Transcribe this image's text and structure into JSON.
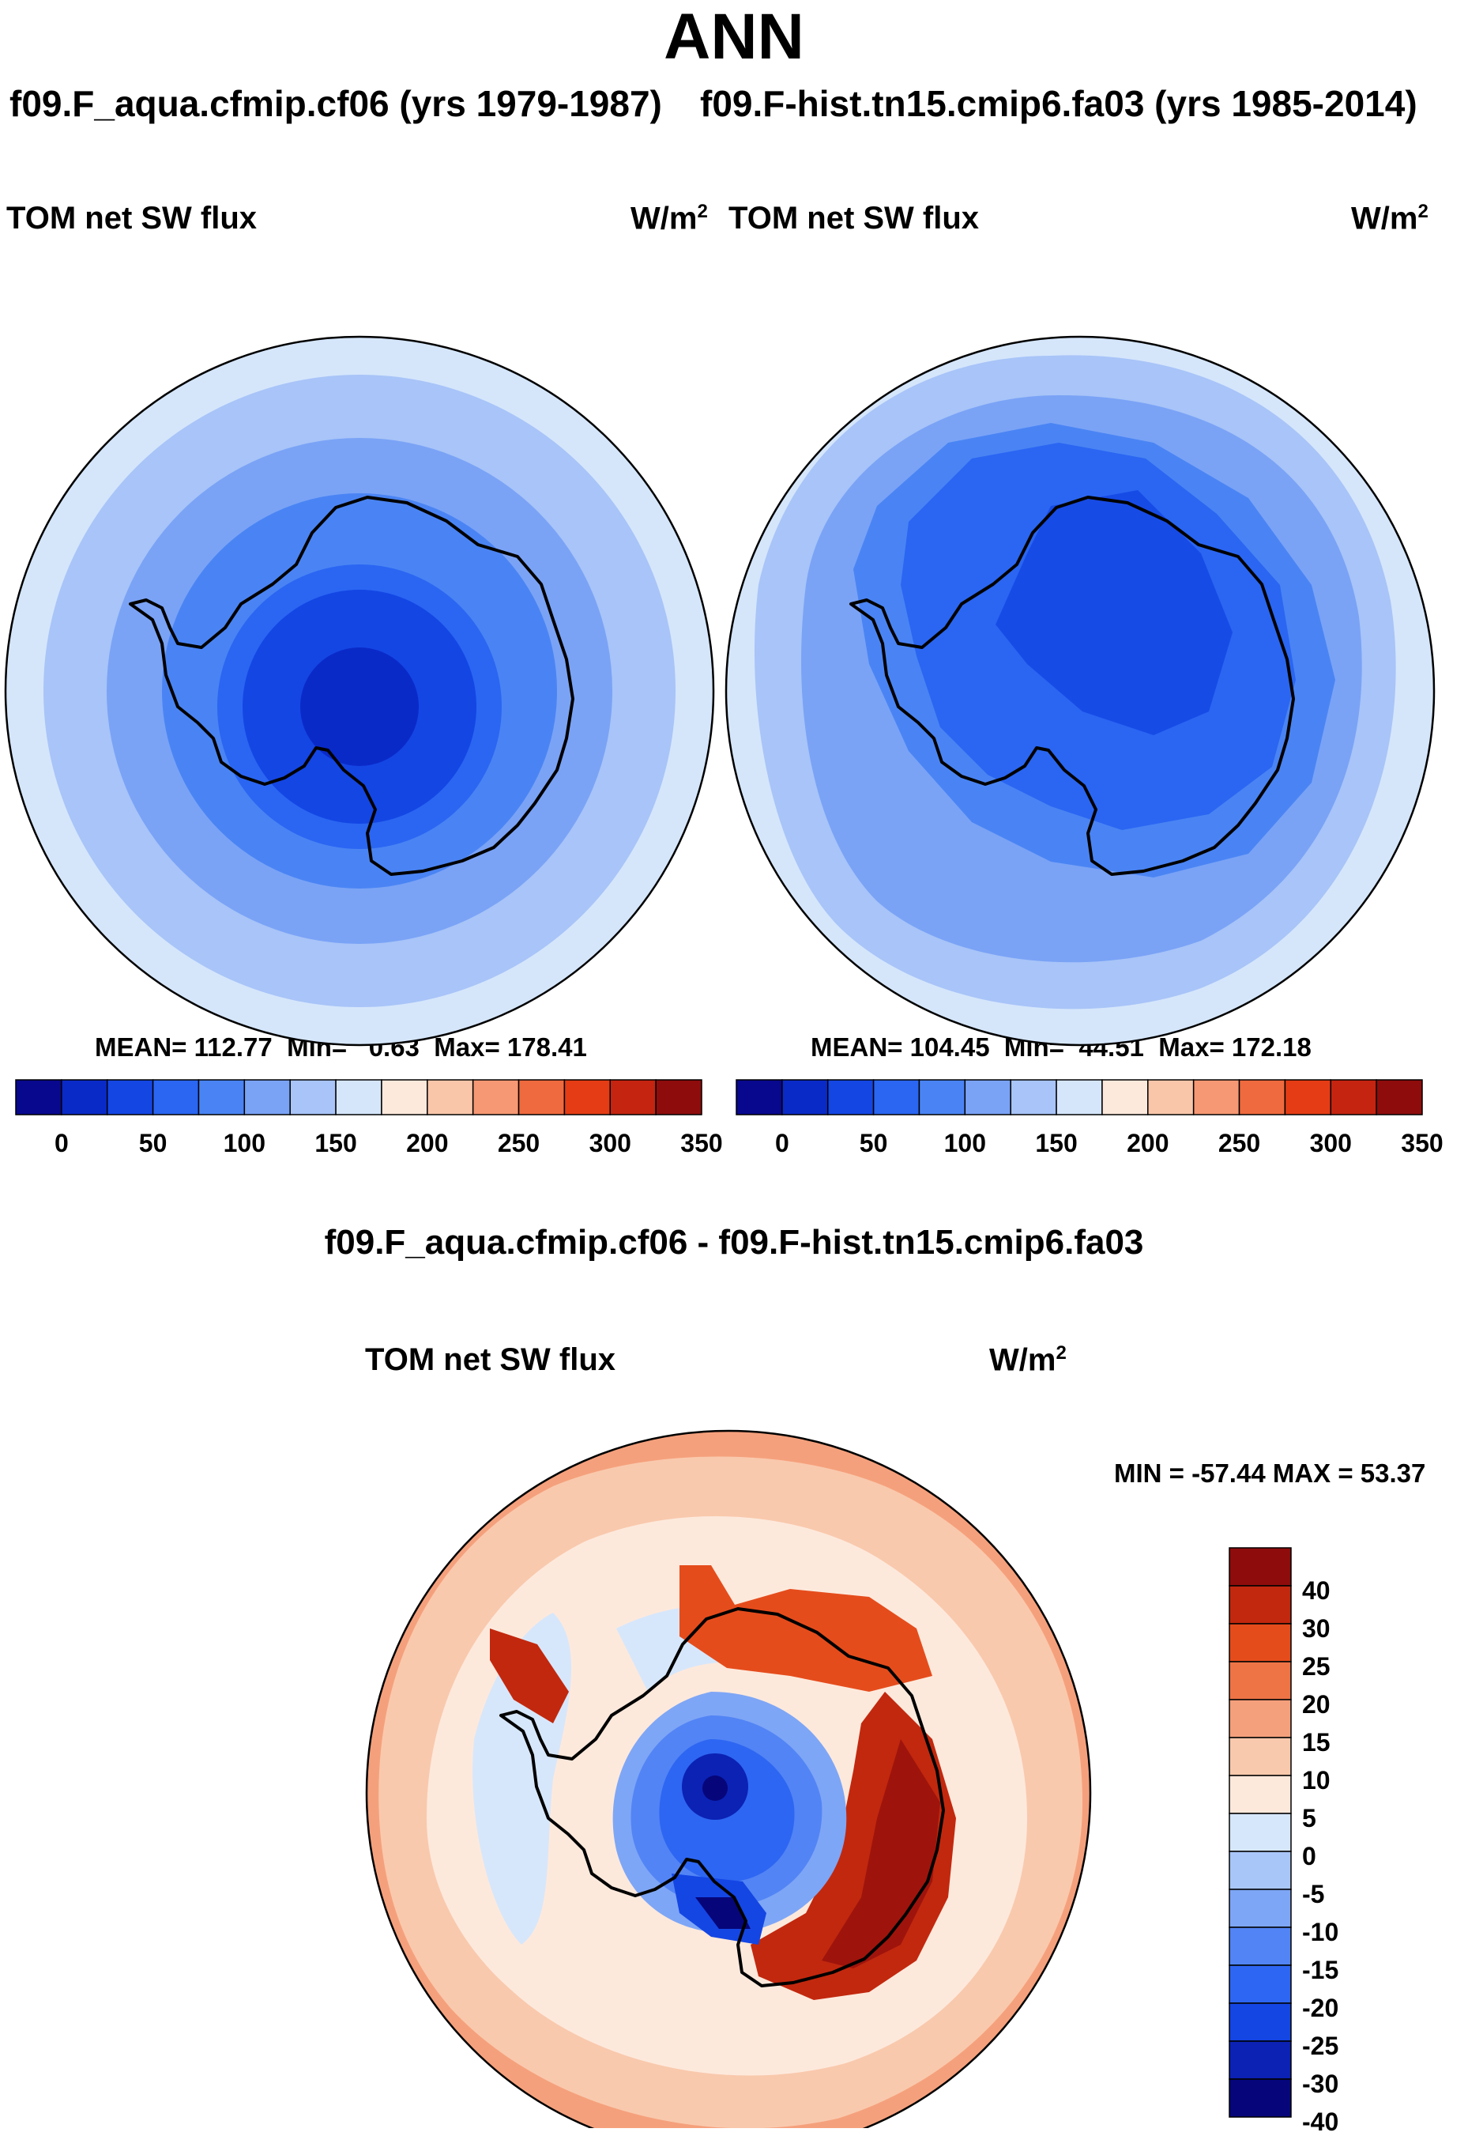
{
  "figure": {
    "title": "ANN",
    "colors": {
      "seq": [
        "#08088f",
        "#0a2ac8",
        "#1446e4",
        "#2a66f2",
        "#4a84f4",
        "#7aa3f6",
        "#a8c4f8",
        "#d5e6fb",
        "#fde9dc",
        "#f9c6aa",
        "#f59873",
        "#ef6a3e",
        "#e53c15",
        "#c52410",
        "#8f0c0c"
      ],
      "div": [
        "#06067a",
        "#0b22b4",
        "#1446e4",
        "#2d66f2",
        "#5284f5",
        "#7ea6f6",
        "#a9c6f8",
        "#d7e7fb",
        "#fde9dc",
        "#f9c9ad",
        "#f5a07c",
        "#ee7446",
        "#e54c1c",
        "#c2280e",
        "#8f0c0c"
      ]
    }
  },
  "chart_data": [
    {
      "type": "heatmap",
      "subtype": "polar-stereographic-map",
      "case_title": "f09.F_aqua.cfmip.cf06 (yrs 1979-1987)",
      "variable": "TOM net SW flux",
      "units_base": "W/m",
      "units_sup": "2",
      "stats": {
        "mean_label": "MEAN=",
        "mean": "112.77",
        "min_label": "Min=",
        "min": "0.63",
        "max_label": "Max=",
        "max": "178.41"
      },
      "colorbar": {
        "orientation": "horizontal",
        "levels": [
          0,
          25,
          50,
          75,
          100,
          125,
          150,
          175,
          200,
          225,
          250,
          275,
          300,
          325,
          350
        ],
        "tick_labels": [
          "0",
          "50",
          "100",
          "150",
          "200",
          "250",
          "300",
          "350"
        ]
      },
      "region": "Southern Hemisphere, Antarctica"
    },
    {
      "type": "heatmap",
      "subtype": "polar-stereographic-map",
      "case_title": "f09.F-hist.tn15.cmip6.fa03 (yrs 1985-2014)",
      "variable": "TOM net SW flux",
      "units_base": "W/m",
      "units_sup": "2",
      "stats": {
        "mean_label": "MEAN=",
        "mean": "104.45",
        "min_label": "Min=",
        "min": "44.51",
        "max_label": "Max=",
        "max": "172.18"
      },
      "colorbar": {
        "orientation": "horizontal",
        "levels": [
          0,
          25,
          50,
          75,
          100,
          125,
          150,
          175,
          200,
          225,
          250,
          275,
          300,
          325,
          350
        ],
        "tick_labels": [
          "0",
          "50",
          "100",
          "150",
          "200",
          "250",
          "300",
          "350"
        ]
      },
      "region": "Southern Hemisphere, Antarctica"
    },
    {
      "type": "heatmap",
      "subtype": "polar-stereographic-map-difference",
      "case_title": "f09.F_aqua.cfmip.cf06 - f09.F-hist.tn15.cmip6.fa03",
      "variable": "TOM net SW flux",
      "units_base": "W/m",
      "units_sup": "2",
      "stats": {
        "text": "MIN = -57.44 MAX =  53.37",
        "min": -57.44,
        "max": 53.37
      },
      "colorbar": {
        "orientation": "vertical",
        "tick_labels": [
          "40",
          "30",
          "25",
          "20",
          "15",
          "10",
          "5",
          "0",
          "-5",
          "-10",
          "-15",
          "-20",
          "-25",
          "-30",
          "-40"
        ]
      },
      "region": "Southern Hemisphere, Antarctica"
    }
  ]
}
